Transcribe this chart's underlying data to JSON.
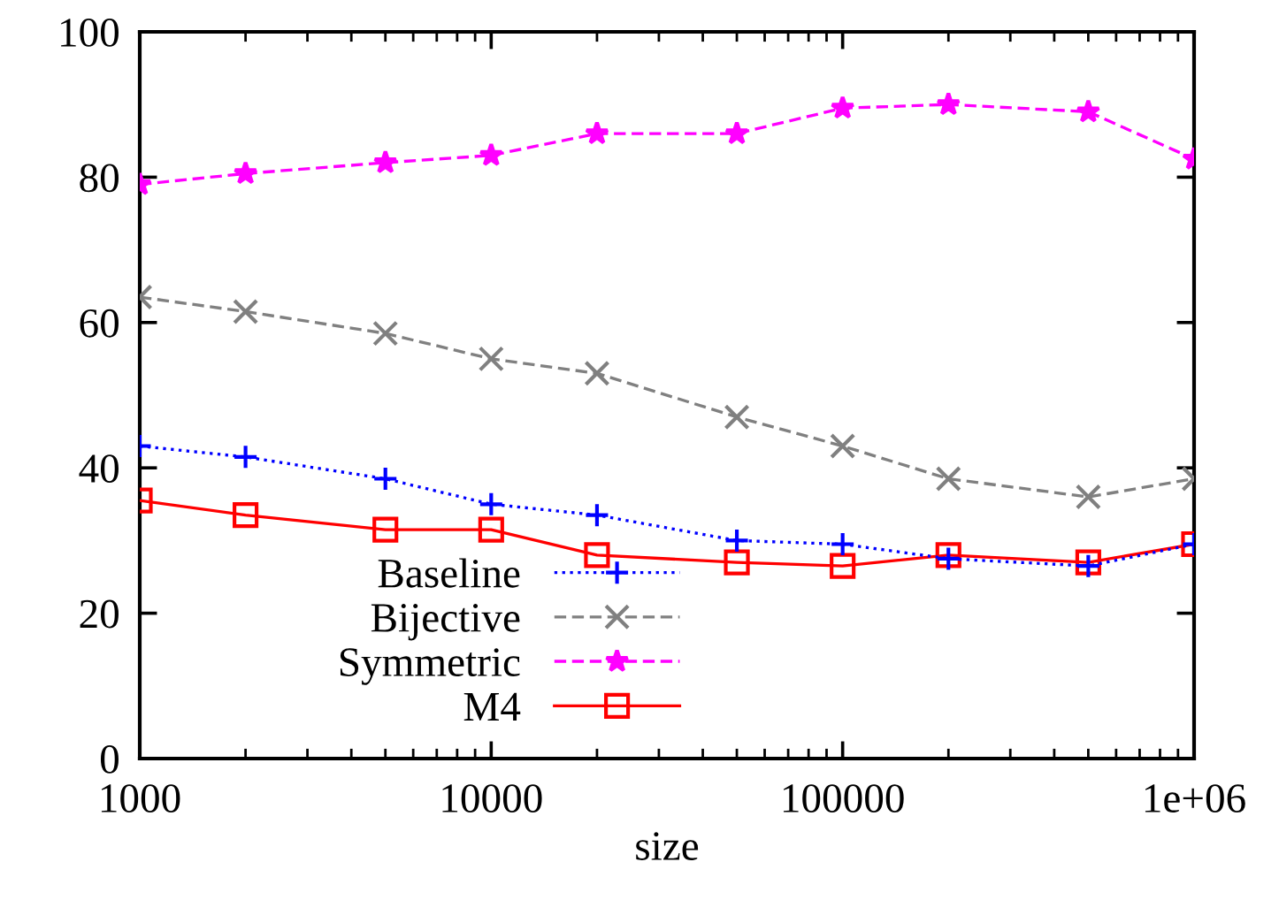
{
  "chart_data": {
    "type": "line",
    "xlabel": "size",
    "log": "x",
    "x": [
      1000,
      2000,
      5000,
      10000,
      20000,
      50000,
      100000,
      200000,
      500000,
      1000000
    ],
    "xlim": [
      1000,
      1000000
    ],
    "xticks": [
      1000,
      10000,
      100000,
      {
        "value": 1000000,
        "label": "1e+06"
      }
    ],
    "ylim": [
      0,
      100
    ],
    "yticks": [
      0,
      20,
      40,
      60,
      80,
      100
    ],
    "grid": false,
    "legend": "bottom",
    "series": [
      {
        "name": "Baseline",
        "color": "#0000ff",
        "marker": "plus",
        "line_style": "dotted",
        "values": [
          43,
          41.5,
          38.5,
          35,
          33.5,
          30,
          29.5,
          27.5,
          26.5,
          29.5
        ]
      },
      {
        "name": "Bijective",
        "color": "#808080",
        "marker": "cross",
        "line_style": "dashed",
        "values": [
          63.5,
          61.5,
          58.5,
          55,
          53,
          47,
          43,
          38.5,
          36,
          38.5
        ]
      },
      {
        "name": "Symmetric",
        "color": "#ff00ff",
        "marker": "star",
        "line_style": "dashed",
        "values": [
          79,
          80.5,
          82,
          83,
          86,
          86,
          89.5,
          90,
          89,
          82.5
        ]
      },
      {
        "name": "M4",
        "color": "#ff0000",
        "marker": "square",
        "line_style": "solid",
        "values": [
          35.5,
          33.5,
          31.5,
          31.5,
          28,
          27,
          26.5,
          28,
          27,
          29.5
        ]
      }
    ]
  }
}
